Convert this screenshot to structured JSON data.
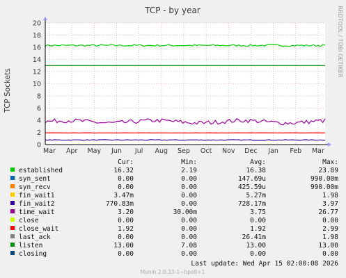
{
  "chart_data": {
    "type": "line",
    "title": "TCP - by year",
    "ylabel": "TCP Sockets",
    "ylim": [
      0,
      20
    ],
    "yticks": [
      "0",
      "2",
      "4",
      "6",
      "8",
      "10",
      "12",
      "14",
      "16",
      "18",
      "20"
    ],
    "xticks": [
      "Mar",
      "Apr",
      "May",
      "Jun",
      "Jul",
      "Aug",
      "Sep",
      "Oct",
      "Nov",
      "Dec",
      "Jan",
      "Feb",
      "Mar"
    ],
    "grid": true,
    "side_label": "RRDTOOL / TOBI OETIKER",
    "columns": [
      "Cur:",
      "Min:",
      "Avg:",
      "Max:"
    ],
    "series": [
      {
        "name": "established",
        "color": "#00CC00",
        "cur": "16.32",
        "min": "2.19",
        "avg": "16.38",
        "max": "23.89",
        "level": 16.3
      },
      {
        "name": "syn_sent",
        "color": "#0066B3",
        "cur": "0.00",
        "min": "0.00",
        "avg": "147.69u",
        "max": "990.00m",
        "level": 0
      },
      {
        "name": "syn_recv",
        "color": "#FF8000",
        "cur": "0.00",
        "min": "0.00",
        "avg": "425.59u",
        "max": "990.00m",
        "level": 0
      },
      {
        "name": "fin_wait1",
        "color": "#FFCC00",
        "cur": "3.47m",
        "min": "0.00",
        "avg": "5.27m",
        "max": "1.98",
        "level": 0
      },
      {
        "name": "fin_wait2",
        "color": "#330099",
        "cur": "770.83m",
        "min": "0.00",
        "avg": "728.17m",
        "max": "3.97",
        "level": 0.75
      },
      {
        "name": "time_wait",
        "color": "#990099",
        "cur": "3.20",
        "min": "30.00m",
        "avg": "3.75",
        "max": "26.77",
        "level": 3.75
      },
      {
        "name": "close",
        "color": "#CCFF00",
        "cur": "0.00",
        "min": "0.00",
        "avg": "0.00",
        "max": "0.00",
        "level": 0
      },
      {
        "name": "close_wait",
        "color": "#FF0000",
        "cur": "1.92",
        "min": "0.00",
        "avg": "1.92",
        "max": "2.99",
        "level": 1.92
      },
      {
        "name": "last_ack",
        "color": "#808080",
        "cur": "0.00",
        "min": "0.00",
        "avg": "26.41m",
        "max": "1.98",
        "level": 0
      },
      {
        "name": "listen",
        "color": "#008F00",
        "cur": "13.00",
        "min": "7.08",
        "avg": "13.00",
        "max": "13.00",
        "level": 13
      },
      {
        "name": "closing",
        "color": "#00487D",
        "cur": "0.00",
        "min": "0.00",
        "avg": "0.00",
        "max": "0.00",
        "level": 0
      }
    ],
    "last_update": "Last update: Wed Apr 15 02:00:08 2026",
    "footer": "Munin 2.0.33-1~bpo8+1"
  }
}
